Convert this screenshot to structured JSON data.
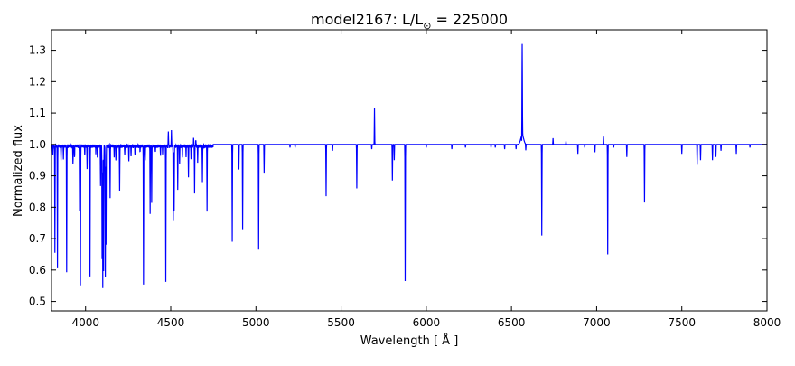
{
  "chart_data": {
    "type": "line",
    "title": "model2167: L/L",
    "title_symbol": "⊙",
    "title_value": "= 225000",
    "xlabel": "Wavelength [ Å ]",
    "ylabel": "Normalized flux",
    "xlim": [
      3800,
      8000
    ],
    "ylim": [
      0.47,
      1.365
    ],
    "xticks": [
      4000,
      4500,
      5000,
      5500,
      6000,
      6500,
      7000,
      7500,
      8000
    ],
    "yticks": [
      0.5,
      0.6,
      0.7,
      0.8,
      0.9,
      1.0,
      1.1,
      1.2,
      1.3
    ],
    "grid": false,
    "line_color": "#0000ff",
    "continuum": 1.0,
    "series": [
      {
        "name": "spectrum",
        "lines_wavelength_minflux": [
          [
            3808,
            0.97
          ],
          [
            3820,
            0.66
          ],
          [
            3835,
            0.61
          ],
          [
            3856,
            0.95
          ],
          [
            3870,
            0.96
          ],
          [
            3889,
            0.595
          ],
          [
            3926,
            0.94
          ],
          [
            3935,
            0.96
          ],
          [
            3965,
            0.79
          ],
          [
            3970,
            0.56
          ],
          [
            3995,
            0.97
          ],
          [
            4009,
            0.93
          ],
          [
            4026,
            0.59
          ],
          [
            4060,
            0.98
          ],
          [
            4069,
            0.97
          ],
          [
            4088,
            0.87
          ],
          [
            4097,
            0.635
          ],
          [
            4101,
            0.545
          ],
          [
            4106,
            0.6
          ],
          [
            4116,
            0.58
          ],
          [
            4120,
            0.69
          ],
          [
            4144,
            0.83
          ],
          [
            4168,
            0.97
          ],
          [
            4178,
            0.95
          ],
          [
            4200,
            0.855
          ],
          [
            4230,
            0.97
          ],
          [
            4254,
            0.95
          ],
          [
            4267,
            0.97
          ],
          [
            4290,
            0.97
          ],
          [
            4320,
            0.98
          ],
          [
            4340,
            0.565
          ],
          [
            4350,
            0.95
          ],
          [
            4379,
            0.79
          ],
          [
            4388,
            0.825
          ],
          [
            4410,
            0.98
          ],
          [
            4440,
            0.97
          ],
          [
            4452,
            0.98
          ],
          [
            4471,
            0.565
          ],
          [
            4486,
            1.05
          ],
          [
            4504,
            1.05
          ],
          [
            4515,
            0.76
          ],
          [
            4520,
            0.79
          ],
          [
            4541,
            0.86
          ],
          [
            4552,
            0.94
          ],
          [
            4568,
            0.96
          ],
          [
            4590,
            0.97
          ],
          [
            4604,
            0.9
          ],
          [
            4619,
            0.96
          ],
          [
            4634,
            1.025
          ],
          [
            4640,
            0.85
          ],
          [
            4647,
            1.02
          ],
          [
            4658,
            0.95
          ],
          [
            4686,
            0.885
          ],
          [
            4713,
            0.79
          ],
          [
            4861,
            0.69
          ],
          [
            4900,
            0.92
          ],
          [
            4922,
            0.73
          ],
          [
            5016,
            0.665
          ],
          [
            5048,
            0.91
          ],
          [
            5200,
            0.99
          ],
          [
            5230,
            0.99
          ],
          [
            5412,
            0.835
          ],
          [
            5450,
            0.98
          ],
          [
            5592,
            0.86
          ],
          [
            5680,
            0.985
          ],
          [
            5696,
            1.115
          ],
          [
            5801,
            0.885
          ],
          [
            5812,
            0.95
          ],
          [
            5876,
            0.565
          ],
          [
            6000,
            0.99
          ],
          [
            6150,
            0.985
          ],
          [
            6230,
            0.99
          ],
          [
            6380,
            0.99
          ],
          [
            6405,
            0.99
          ],
          [
            6460,
            0.985
          ],
          [
            6527,
            0.985
          ],
          [
            6560,
            0.975
          ],
          [
            6563,
            1.29
          ],
          [
            6584,
            0.98
          ],
          [
            6678,
            0.71
          ],
          [
            6744,
            1.02
          ],
          [
            6820,
            1.01
          ],
          [
            6890,
            0.97
          ],
          [
            6930,
            0.99
          ],
          [
            6990,
            0.975
          ],
          [
            7040,
            1.025
          ],
          [
            7065,
            0.65
          ],
          [
            7100,
            0.99
          ],
          [
            7177,
            0.96
          ],
          [
            7281,
            0.815
          ],
          [
            7500,
            0.97
          ],
          [
            7590,
            0.935
          ],
          [
            7610,
            0.95
          ],
          [
            7680,
            0.95
          ],
          [
            7700,
            0.96
          ],
          [
            7730,
            0.98
          ],
          [
            7820,
            0.97
          ],
          [
            7900,
            0.99
          ]
        ]
      }
    ]
  }
}
